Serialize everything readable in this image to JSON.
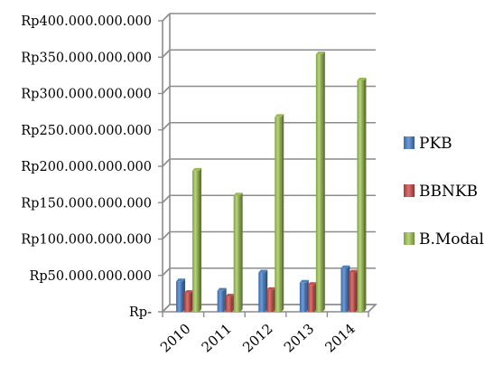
{
  "chart_data": {
    "type": "bar",
    "style": "3d-clustered-column",
    "categories": [
      "2010",
      "2011",
      "2012",
      "2013",
      "2014"
    ],
    "series": [
      {
        "name": "PKB",
        "color": "#4F81BD",
        "values": [
          42000000000,
          29000000000,
          54000000000,
          40000000000,
          60000000000
        ]
      },
      {
        "name": "BBNKB",
        "color": "#C0504D",
        "values": [
          26000000000,
          21000000000,
          30000000000,
          37000000000,
          54000000000
        ]
      },
      {
        "name": "B.Modal",
        "color": "#9BBB59",
        "values": [
          194000000000,
          160000000000,
          268000000000,
          354000000000,
          318000000000
        ]
      }
    ],
    "ylim": [
      0,
      400000000000
    ],
    "yticks": [
      0,
      50000000000,
      100000000000,
      150000000000,
      200000000000,
      250000000000,
      300000000000,
      350000000000,
      400000000000
    ],
    "ytick_labels": [
      "Rp-",
      "Rp50.000.000.000",
      "Rp100.000.000.000",
      "Rp150.000.000.000",
      "Rp200.000.000.000",
      "Rp250.000.000.000",
      "Rp300.000.000.000",
      "Rp350.000.000.000",
      "Rp400.000.000.000"
    ],
    "grid": true,
    "legend_position": "right"
  }
}
